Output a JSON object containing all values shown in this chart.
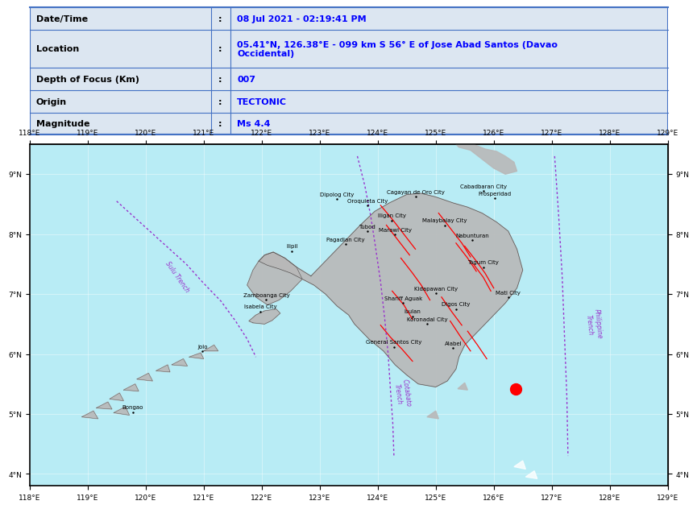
{
  "table_rows": [
    {
      "label": "Date/Time",
      "value": "08 Jul 2021 - 02:19:41 PM"
    },
    {
      "label": "Location",
      "value": "05.41°N, 126.38°E - 099 km S 56° E of Jose Abad Santos (Davao\nOccidental)"
    },
    {
      "label": "Depth of Focus (Km)",
      "value": "007"
    },
    {
      "label": "Origin",
      "value": "TECTONIC"
    },
    {
      "label": "Magnitude",
      "value": "Ms 4.4"
    }
  ],
  "table_bg": "#dce6f1",
  "table_border": "#4472c4",
  "label_color": "#000000",
  "value_color": "#0000ff",
  "map_bg": "#b8ecf5",
  "map_xlim": [
    118,
    129
  ],
  "map_ylim": [
    3.8,
    9.5
  ],
  "xticks": [
    118,
    119,
    120,
    121,
    122,
    123,
    124,
    125,
    126,
    127,
    128,
    129
  ],
  "yticks": [
    4,
    5,
    6,
    7,
    8,
    9
  ],
  "epicenter": [
    126.38,
    5.41
  ],
  "epicenter_color": "red",
  "cities": [
    {
      "name": "Dipolog City",
      "lon": 123.3,
      "lat": 8.59
    },
    {
      "name": "Cagayan de Oro City",
      "lon": 124.65,
      "lat": 8.63
    },
    {
      "name": "Cabadbaran City",
      "lon": 125.82,
      "lat": 8.72
    },
    {
      "name": "Prosperidad",
      "lon": 126.02,
      "lat": 8.6
    },
    {
      "name": "Oroquieta City",
      "lon": 123.82,
      "lat": 8.48
    },
    {
      "name": "Iligan City",
      "lon": 124.24,
      "lat": 8.23
    },
    {
      "name": "Malaybalay City",
      "lon": 125.15,
      "lat": 8.15
    },
    {
      "name": "Tubod",
      "lon": 123.82,
      "lat": 8.05
    },
    {
      "name": "Marawi City",
      "lon": 124.3,
      "lat": 7.99
    },
    {
      "name": "Nabunturan",
      "lon": 125.63,
      "lat": 7.9
    },
    {
      "name": "Ilipil",
      "lon": 122.52,
      "lat": 7.72
    },
    {
      "name": "Pagadian City",
      "lon": 123.45,
      "lat": 7.83
    },
    {
      "name": "Tagum City",
      "lon": 125.82,
      "lat": 7.45
    },
    {
      "name": "Kidapawan City",
      "lon": 125.0,
      "lat": 7.01
    },
    {
      "name": "Mati City",
      "lon": 126.25,
      "lat": 6.95
    },
    {
      "name": "Zamboanga City",
      "lon": 122.08,
      "lat": 6.91
    },
    {
      "name": "Shariff Aguak",
      "lon": 124.44,
      "lat": 6.85
    },
    {
      "name": "Digos City",
      "lon": 125.35,
      "lat": 6.75
    },
    {
      "name": "Isabela City",
      "lon": 121.98,
      "lat": 6.71
    },
    {
      "name": "Isulan",
      "lon": 124.6,
      "lat": 6.63
    },
    {
      "name": "Koronadal City",
      "lon": 124.85,
      "lat": 6.5
    },
    {
      "name": "General Santos City",
      "lon": 124.28,
      "lat": 6.12
    },
    {
      "name": "Alabel",
      "lon": 125.3,
      "lat": 6.1
    },
    {
      "name": "Jolo",
      "lon": 120.98,
      "lat": 6.05
    },
    {
      "name": "Bongao",
      "lon": 119.78,
      "lat": 5.03
    }
  ]
}
